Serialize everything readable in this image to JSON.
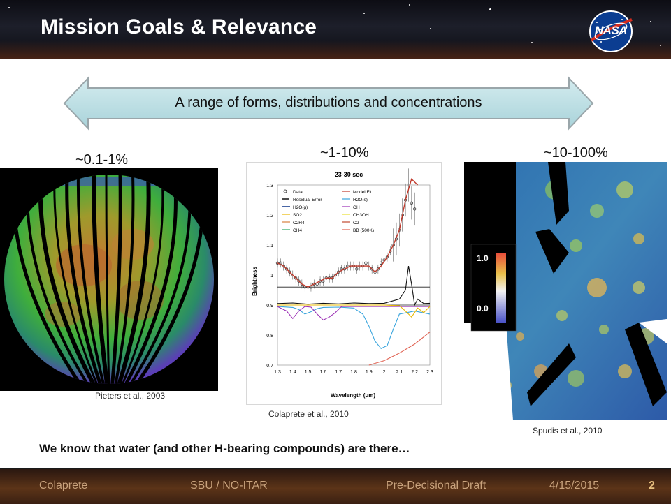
{
  "slide": {
    "title": "Mission Goals & Relevance",
    "logo_text": "NASA",
    "arrow_text": "A range of forms, distributions and concentrations",
    "statement": "We know that water (and other H-bearing compounds) are there…"
  },
  "panels": {
    "left": {
      "percent": "~0.1-1%",
      "citation": "Pieters et al., 2003"
    },
    "middle": {
      "percent": "~1-10%",
      "citation": "Colaprete et al., 2010"
    },
    "right": {
      "percent": "~10-100%",
      "citation": "Spudis et al., 2010",
      "colorbar_top": "1.0",
      "colorbar_bottom": "0.0"
    }
  },
  "footer": {
    "author": "Colaprete",
    "org": "SBU / NO-ITAR",
    "status": "Pre-Decisional Draft",
    "date": "4/15/2015",
    "page": "2"
  },
  "chart_data": {
    "type": "line",
    "title": "23-30 sec",
    "xlabel": "Wavelength (μm)",
    "ylabel": "Brightness",
    "xlim": [
      1.3,
      2.3
    ],
    "ylim": [
      0.7,
      1.3
    ],
    "xticks": [
      "1.3",
      "1.4",
      "1.5",
      "1.6",
      "1.7",
      "1.8",
      "1.9",
      "2",
      "2.1",
      "2.2",
      "2.3"
    ],
    "yticks": [
      "1.3",
      "1.2",
      "1.1",
      "1",
      "0.9",
      "0.8",
      "0.7"
    ],
    "legend": [
      "Data",
      "Model Fit",
      "Residual Error",
      "H2O(s)",
      "H2O(g)",
      "OH",
      "SO2",
      "CH3OH",
      "C2H4",
      "O2",
      "CH4",
      "BB (500K)"
    ],
    "series": [
      {
        "name": "Data",
        "color": "#222222",
        "x": [
          1.3,
          1.32,
          1.34,
          1.36,
          1.38,
          1.4,
          1.42,
          1.44,
          1.46,
          1.48,
          1.5,
          1.52,
          1.54,
          1.56,
          1.58,
          1.6,
          1.62,
          1.64,
          1.66,
          1.68,
          1.7,
          1.72,
          1.74,
          1.76,
          1.78,
          1.8,
          1.82,
          1.84,
          1.86,
          1.88,
          1.9,
          1.92,
          1.94,
          1.96,
          1.98,
          2.0,
          2.02,
          2.04,
          2.06,
          2.08,
          2.1,
          2.12,
          2.14,
          2.16,
          2.18,
          2.2
        ],
        "y": [
          1.04,
          1.04,
          1.03,
          1.02,
          1.01,
          1.0,
          0.99,
          0.98,
          0.97,
          0.96,
          0.96,
          0.96,
          0.97,
          0.97,
          0.98,
          0.98,
          0.99,
          0.99,
          0.99,
          1.0,
          1.01,
          1.02,
          1.02,
          1.03,
          1.03,
          1.03,
          1.02,
          1.03,
          1.03,
          1.04,
          1.03,
          1.02,
          1.01,
          1.02,
          1.04,
          1.05,
          1.06,
          1.08,
          1.1,
          1.12,
          1.15,
          1.2,
          1.25,
          1.3,
          1.24,
          1.22
        ]
      },
      {
        "name": "Model Fit",
        "color": "#c0392b",
        "x": [
          1.3,
          1.34,
          1.38,
          1.42,
          1.46,
          1.5,
          1.54,
          1.58,
          1.62,
          1.66,
          1.7,
          1.74,
          1.78,
          1.82,
          1.86,
          1.9,
          1.94,
          1.98,
          2.02,
          2.06,
          2.1,
          2.14,
          2.18,
          2.22
        ],
        "y": [
          1.04,
          1.03,
          1.01,
          0.99,
          0.97,
          0.96,
          0.97,
          0.98,
          0.99,
          0.99,
          1.01,
          1.02,
          1.03,
          1.03,
          1.03,
          1.03,
          1.01,
          1.03,
          1.06,
          1.1,
          1.15,
          1.25,
          1.32,
          1.3
        ]
      },
      {
        "name": "Residual Error",
        "color": "#111111",
        "x": [
          1.3,
          1.4,
          1.5,
          1.6,
          1.7,
          1.8,
          1.9,
          2.0,
          2.1,
          2.14,
          2.16,
          2.18,
          2.2,
          2.22,
          2.26,
          2.3
        ],
        "y": [
          0.905,
          0.907,
          0.903,
          0.906,
          0.904,
          0.907,
          0.905,
          0.906,
          0.92,
          0.95,
          1.03,
          0.97,
          0.9,
          0.92,
          0.905,
          0.906
        ]
      },
      {
        "name": "H2O(s)",
        "color": "#3aa5dd",
        "x": [
          1.3,
          1.4,
          1.44,
          1.48,
          1.52,
          1.56,
          1.6,
          1.7,
          1.8,
          1.86,
          1.9,
          1.94,
          1.98,
          2.02,
          2.06,
          2.1,
          2.2,
          2.3
        ],
        "y": [
          0.895,
          0.892,
          0.885,
          0.87,
          0.878,
          0.888,
          0.892,
          0.893,
          0.89,
          0.87,
          0.83,
          0.78,
          0.755,
          0.765,
          0.82,
          0.87,
          0.88,
          0.87
        ]
      },
      {
        "name": "OH",
        "color": "#9b30b5",
        "x": [
          1.3,
          1.36,
          1.4,
          1.44,
          1.48,
          1.52,
          1.56,
          1.6,
          1.64,
          1.68,
          1.72,
          1.76,
          2.3
        ],
        "y": [
          0.895,
          0.88,
          0.855,
          0.88,
          0.895,
          0.893,
          0.87,
          0.85,
          0.86,
          0.875,
          0.895,
          0.895,
          0.895
        ]
      },
      {
        "name": "SO2",
        "color": "#e8b800",
        "x": [
          1.3,
          2.0,
          2.1,
          2.14,
          2.18,
          2.22,
          2.26,
          2.3
        ],
        "y": [
          0.9,
          0.9,
          0.898,
          0.88,
          0.86,
          0.89,
          0.875,
          0.895
        ]
      },
      {
        "name": "BB (500K)",
        "color": "#e06050",
        "x": [
          1.9,
          2.0,
          2.1,
          2.2,
          2.3
        ],
        "y": [
          0.7,
          0.715,
          0.74,
          0.77,
          0.81
        ]
      }
    ]
  }
}
